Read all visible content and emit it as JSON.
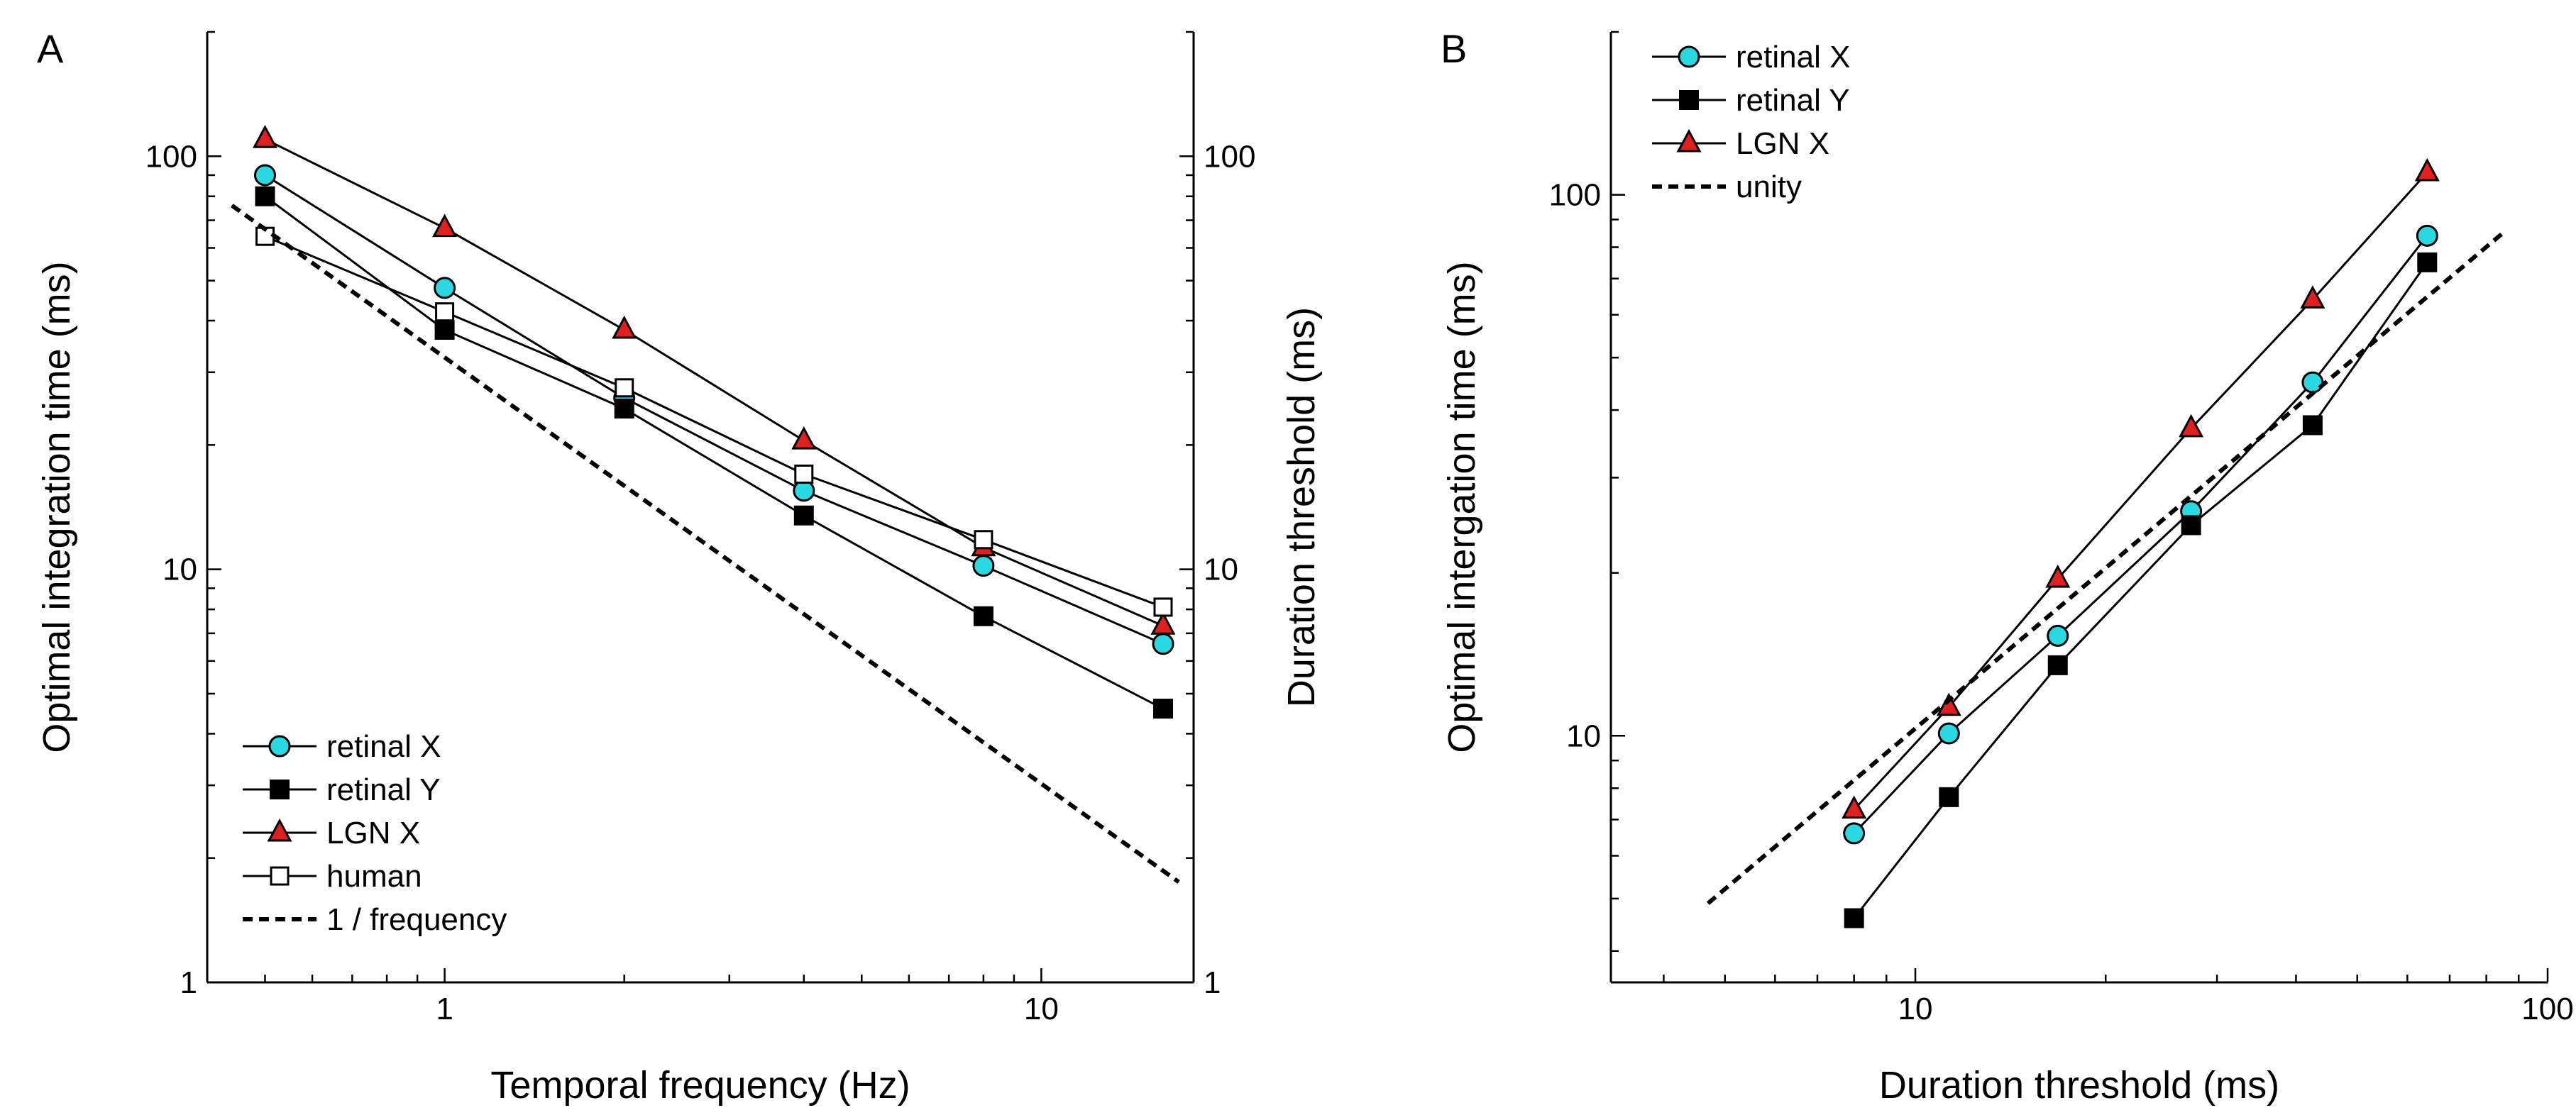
{
  "chart_data": [
    {
      "panel": "A",
      "type": "line",
      "xscale": "log",
      "yscale": "log",
      "xlabel": "Temporal frequency (Hz)",
      "ylabel": "Optimal integration time (ms)",
      "y2label": "Duration threshold (ms)",
      "xlim": [
        0.4,
        18
      ],
      "ylim": [
        1,
        200
      ],
      "xticks": [
        {
          "value": 1,
          "label": "1"
        },
        {
          "value": 10,
          "label": "10"
        }
      ],
      "yticks": [
        {
          "value": 1,
          "label": "1"
        },
        {
          "value": 10,
          "label": "10"
        },
        {
          "value": 100,
          "label": "100"
        }
      ],
      "y2ticks": [
        {
          "value": 1,
          "label": "1"
        },
        {
          "value": 10,
          "label": "10"
        },
        {
          "value": 100,
          "label": "100"
        }
      ],
      "legend_position": "bottom-left",
      "series": [
        {
          "name": "retinal X",
          "marker": "circle",
          "color": "#29d8e0",
          "x": [
            0.5,
            1,
            2,
            4,
            8,
            16
          ],
          "y": [
            90,
            48,
            26,
            15.5,
            10.2,
            6.6
          ]
        },
        {
          "name": "retinal Y",
          "marker": "square",
          "color": "#000000",
          "x": [
            0.5,
            1,
            2,
            4,
            8,
            16
          ],
          "y": [
            80,
            38,
            24.5,
            13.5,
            7.7,
            4.6
          ]
        },
        {
          "name": "LGN X",
          "marker": "triangle",
          "color": "#e02020",
          "x": [
            0.5,
            1,
            2,
            4,
            8,
            16
          ],
          "y": [
            110,
            67,
            38,
            20.5,
            11.3,
            7.3
          ]
        },
        {
          "name": "human",
          "marker": "open-square",
          "color": "#ffffff",
          "x": [
            0.5,
            1,
            2,
            4,
            8,
            16
          ],
          "y": [
            64,
            42,
            27.5,
            17,
            11.8,
            8.1
          ]
        },
        {
          "name": "1 / frequency",
          "marker": "dashed-line",
          "color": "#000000",
          "x": [
            0.44,
            17
          ],
          "y": [
            76,
            1.75
          ]
        }
      ]
    },
    {
      "panel": "B",
      "type": "line",
      "xscale": "log",
      "yscale": "log",
      "xlabel": "Duration threshold (ms)",
      "ylabel": "Optimal intergation time (ms)",
      "xlim": [
        3.3,
        100
      ],
      "ylim": [
        3.5,
        200
      ],
      "xticks": [
        {
          "value": 10,
          "label": "10"
        },
        {
          "value": 100,
          "label": "100"
        }
      ],
      "yticks": [
        {
          "value": 10,
          "label": "10"
        },
        {
          "value": 100,
          "label": "100"
        }
      ],
      "legend_position": "top-left",
      "series": [
        {
          "name": "retinal X",
          "marker": "circle",
          "color": "#29d8e0",
          "x": [
            8,
            11.3,
            16.8,
            27.3,
            42.5,
            64.5
          ],
          "y": [
            6.6,
            10.1,
            15.3,
            26,
            45,
            84
          ]
        },
        {
          "name": "retinal Y",
          "marker": "square",
          "color": "#000000",
          "x": [
            8,
            11.3,
            16.8,
            27.3,
            42.5,
            64.5
          ],
          "y": [
            4.6,
            7.7,
            13.5,
            24.5,
            37.5,
            75
          ]
        },
        {
          "name": "LGN X",
          "marker": "triangle",
          "color": "#e02020",
          "x": [
            8,
            11.3,
            16.8,
            27.3,
            42.5,
            64.5
          ],
          "y": [
            7.3,
            11.3,
            19.5,
            37,
            64,
            110
          ]
        },
        {
          "name": "unity",
          "marker": "dashed-line",
          "color": "#000000",
          "x": [
            4.7,
            86
          ],
          "y": [
            4.9,
            86
          ]
        }
      ]
    }
  ]
}
